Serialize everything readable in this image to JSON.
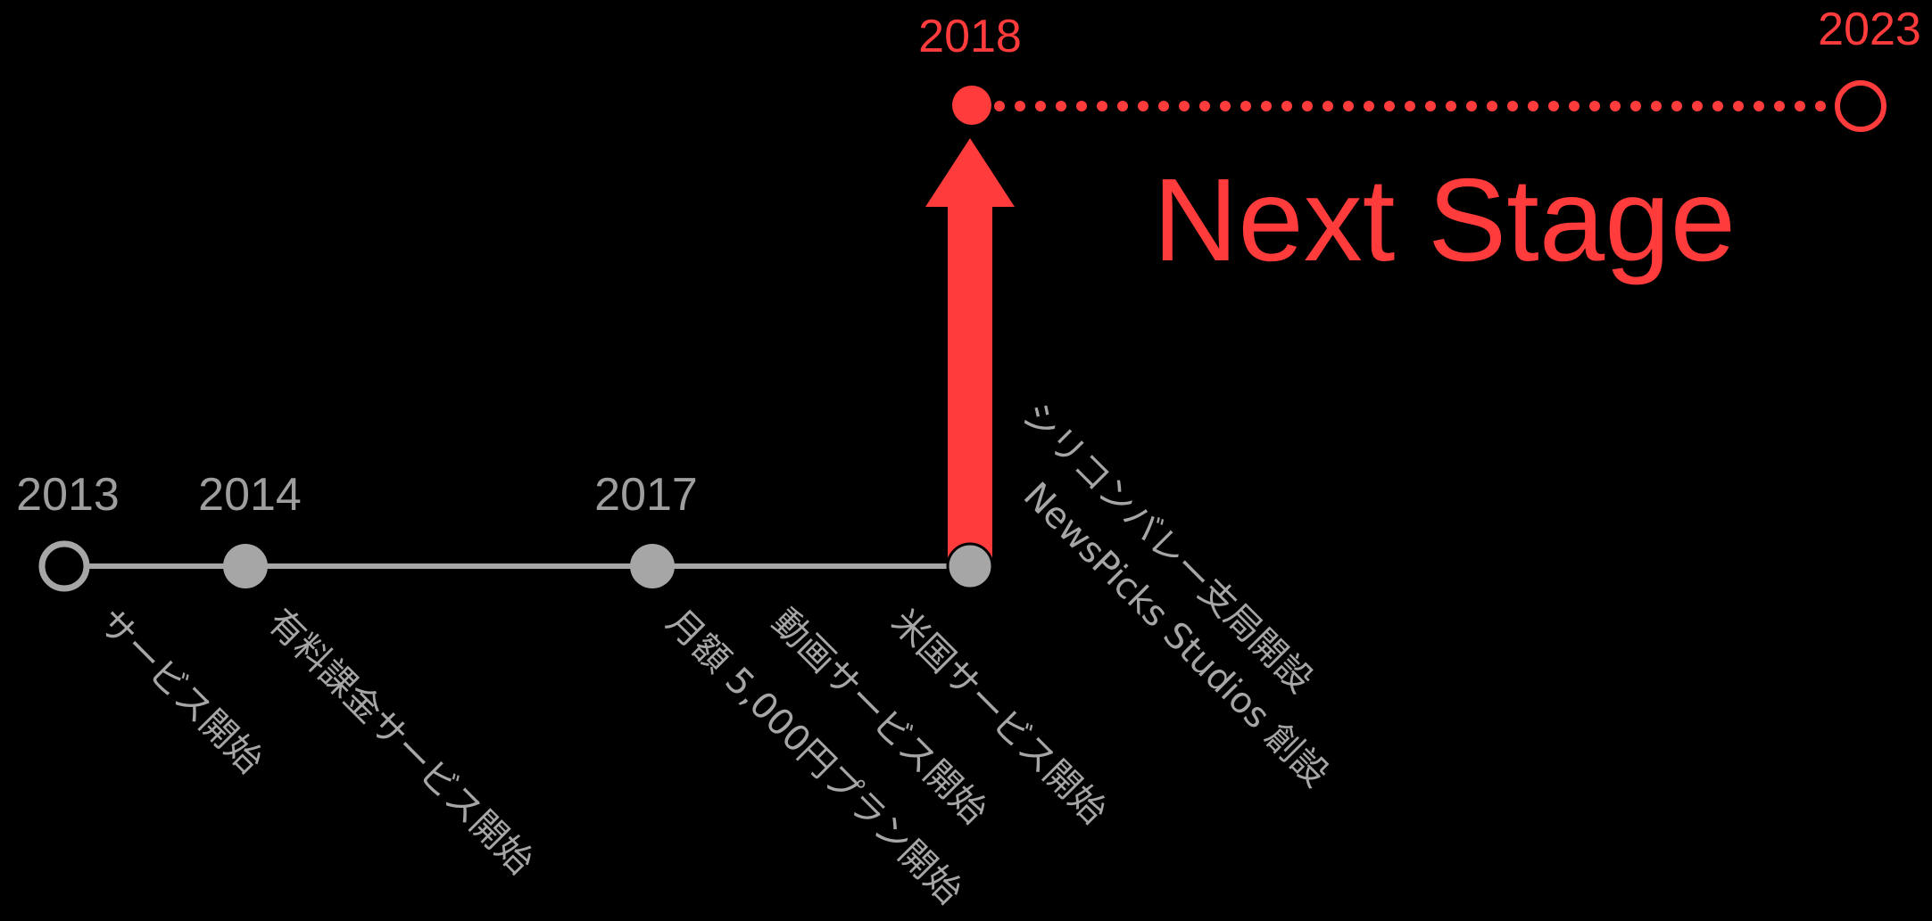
{
  "colors": {
    "background": "#000000",
    "timeline_gray": "#a6a6a6",
    "accent_red": "#ff3b3b"
  },
  "timeline": {
    "years": {
      "y2013": "2013",
      "y2014": "2014",
      "y2017": "2017",
      "y2018": "2018",
      "y2023": "2023"
    },
    "events": {
      "e2013": "サービス開始",
      "e2014": "有料課金サービス開始",
      "e2017a": "月額 5,000円プラン開始",
      "e2017b": "動画サービス開始",
      "e2017c": "米国サービス開始",
      "e2018a": "シリコンバレー支局開設",
      "e2018b": "NewsPicks Studios 創設"
    },
    "headline": "Next Stage"
  }
}
